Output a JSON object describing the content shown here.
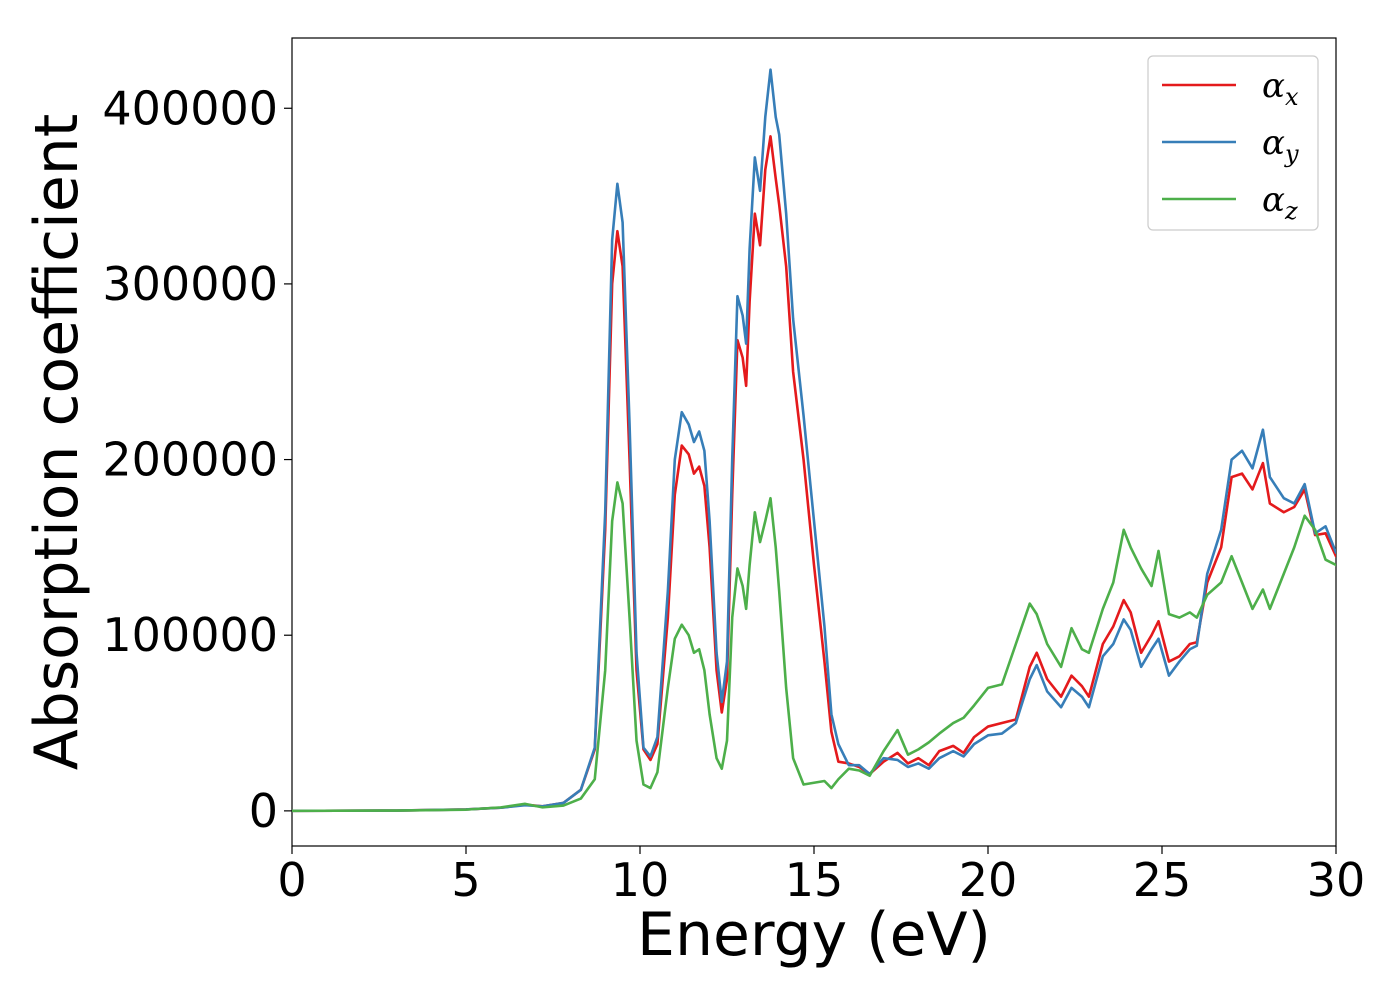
{
  "chart_data": {
    "type": "line",
    "title": "",
    "xlabel": "Energy (eV)",
    "ylabel": "Absorption coefficient",
    "xlim": [
      0,
      30
    ],
    "ylim": [
      -20000,
      440000
    ],
    "xticks": [
      0,
      5,
      10,
      15,
      20,
      25,
      30
    ],
    "yticks": [
      0,
      100000,
      200000,
      300000,
      400000
    ],
    "xtick_labels": [
      "0",
      "5",
      "10",
      "15",
      "20",
      "25",
      "30"
    ],
    "ytick_labels": [
      "0",
      "100000",
      "200000",
      "300000",
      "400000"
    ],
    "grid": false,
    "legend_position": "top-right",
    "series": [
      {
        "name": "αx",
        "name_base": "α",
        "name_sub": "x",
        "color": "#e41a1c",
        "points": [
          [
            0,
            0
          ],
          [
            3,
            200
          ],
          [
            5,
            800
          ],
          [
            6,
            1800
          ],
          [
            6.7,
            3500
          ],
          [
            7.2,
            2600
          ],
          [
            7.8,
            4500
          ],
          [
            8.3,
            12000
          ],
          [
            8.7,
            35000
          ],
          [
            9.0,
            160000
          ],
          [
            9.2,
            300000
          ],
          [
            9.35,
            330000
          ],
          [
            9.5,
            310000
          ],
          [
            9.7,
            200000
          ],
          [
            9.9,
            80000
          ],
          [
            10.1,
            35000
          ],
          [
            10.3,
            29000
          ],
          [
            10.5,
            38000
          ],
          [
            10.8,
            110000
          ],
          [
            11.0,
            180000
          ],
          [
            11.2,
            208000
          ],
          [
            11.4,
            203000
          ],
          [
            11.55,
            192000
          ],
          [
            11.7,
            196000
          ],
          [
            11.85,
            185000
          ],
          [
            12.0,
            150000
          ],
          [
            12.2,
            80000
          ],
          [
            12.35,
            56000
          ],
          [
            12.5,
            75000
          ],
          [
            12.65,
            180000
          ],
          [
            12.8,
            268000
          ],
          [
            12.95,
            258000
          ],
          [
            13.05,
            242000
          ],
          [
            13.15,
            290000
          ],
          [
            13.3,
            340000
          ],
          [
            13.45,
            322000
          ],
          [
            13.6,
            365000
          ],
          [
            13.75,
            384000
          ],
          [
            13.9,
            360000
          ],
          [
            14.0,
            345000
          ],
          [
            14.2,
            310000
          ],
          [
            14.4,
            250000
          ],
          [
            14.7,
            200000
          ],
          [
            15.0,
            140000
          ],
          [
            15.3,
            85000
          ],
          [
            15.5,
            45000
          ],
          [
            15.7,
            28000
          ],
          [
            16.0,
            27000
          ],
          [
            16.3,
            25000
          ],
          [
            16.6,
            21000
          ],
          [
            17.0,
            28000
          ],
          [
            17.4,
            33000
          ],
          [
            17.7,
            27000
          ],
          [
            18.0,
            30000
          ],
          [
            18.3,
            26000
          ],
          [
            18.6,
            34000
          ],
          [
            19.0,
            37000
          ],
          [
            19.3,
            33000
          ],
          [
            19.6,
            42000
          ],
          [
            20.0,
            48000
          ],
          [
            20.4,
            50000
          ],
          [
            20.8,
            52000
          ],
          [
            21.2,
            82000
          ],
          [
            21.4,
            90000
          ],
          [
            21.7,
            75000
          ],
          [
            22.1,
            65000
          ],
          [
            22.4,
            77000
          ],
          [
            22.7,
            71000
          ],
          [
            22.9,
            65000
          ],
          [
            23.3,
            95000
          ],
          [
            23.6,
            105000
          ],
          [
            23.9,
            120000
          ],
          [
            24.1,
            113000
          ],
          [
            24.4,
            90000
          ],
          [
            24.7,
            100000
          ],
          [
            24.9,
            108000
          ],
          [
            25.2,
            85000
          ],
          [
            25.5,
            88000
          ],
          [
            25.8,
            95000
          ],
          [
            26.0,
            96000
          ],
          [
            26.3,
            130000
          ],
          [
            26.7,
            150000
          ],
          [
            27.0,
            190000
          ],
          [
            27.3,
            192000
          ],
          [
            27.6,
            183000
          ],
          [
            27.9,
            198000
          ],
          [
            28.1,
            175000
          ],
          [
            28.5,
            170000
          ],
          [
            28.8,
            173000
          ],
          [
            29.1,
            183000
          ],
          [
            29.4,
            157000
          ],
          [
            29.7,
            158000
          ],
          [
            30.0,
            145000
          ]
        ]
      },
      {
        "name": "αy",
        "name_base": "α",
        "name_sub": "y",
        "color": "#377eb8",
        "points": [
          [
            0,
            0
          ],
          [
            3,
            200
          ],
          [
            5,
            800
          ],
          [
            6,
            1800
          ],
          [
            6.7,
            3200
          ],
          [
            7.2,
            2600
          ],
          [
            7.8,
            4500
          ],
          [
            8.3,
            12000
          ],
          [
            8.7,
            36000
          ],
          [
            9.0,
            170000
          ],
          [
            9.2,
            325000
          ],
          [
            9.35,
            357000
          ],
          [
            9.5,
            335000
          ],
          [
            9.7,
            220000
          ],
          [
            9.9,
            90000
          ],
          [
            10.1,
            36000
          ],
          [
            10.3,
            31000
          ],
          [
            10.5,
            42000
          ],
          [
            10.8,
            125000
          ],
          [
            11.0,
            200000
          ],
          [
            11.2,
            227000
          ],
          [
            11.4,
            220000
          ],
          [
            11.55,
            210000
          ],
          [
            11.7,
            216000
          ],
          [
            11.85,
            205000
          ],
          [
            12.0,
            165000
          ],
          [
            12.2,
            90000
          ],
          [
            12.35,
            62000
          ],
          [
            12.5,
            85000
          ],
          [
            12.65,
            200000
          ],
          [
            12.8,
            293000
          ],
          [
            12.95,
            282000
          ],
          [
            13.05,
            266000
          ],
          [
            13.15,
            320000
          ],
          [
            13.3,
            372000
          ],
          [
            13.45,
            353000
          ],
          [
            13.6,
            395000
          ],
          [
            13.75,
            422000
          ],
          [
            13.9,
            395000
          ],
          [
            14.0,
            385000
          ],
          [
            14.2,
            340000
          ],
          [
            14.4,
            280000
          ],
          [
            14.7,
            225000
          ],
          [
            15.0,
            165000
          ],
          [
            15.3,
            105000
          ],
          [
            15.5,
            55000
          ],
          [
            15.7,
            38000
          ],
          [
            16.0,
            26000
          ],
          [
            16.3,
            26000
          ],
          [
            16.6,
            21000
          ],
          [
            17.0,
            30000
          ],
          [
            17.4,
            29000
          ],
          [
            17.7,
            25000
          ],
          [
            18.0,
            27000
          ],
          [
            18.3,
            24000
          ],
          [
            18.6,
            30000
          ],
          [
            19.0,
            34000
          ],
          [
            19.3,
            31000
          ],
          [
            19.6,
            38000
          ],
          [
            20.0,
            43000
          ],
          [
            20.4,
            44000
          ],
          [
            20.8,
            50000
          ],
          [
            21.2,
            75000
          ],
          [
            21.4,
            83000
          ],
          [
            21.7,
            68000
          ],
          [
            22.1,
            59000
          ],
          [
            22.4,
            70000
          ],
          [
            22.7,
            65000
          ],
          [
            22.9,
            59000
          ],
          [
            23.3,
            88000
          ],
          [
            23.6,
            95000
          ],
          [
            23.9,
            109000
          ],
          [
            24.1,
            103000
          ],
          [
            24.4,
            82000
          ],
          [
            24.7,
            92000
          ],
          [
            24.9,
            98000
          ],
          [
            25.2,
            77000
          ],
          [
            25.5,
            85000
          ],
          [
            25.8,
            92000
          ],
          [
            26.0,
            94000
          ],
          [
            26.3,
            135000
          ],
          [
            26.7,
            160000
          ],
          [
            27.0,
            200000
          ],
          [
            27.3,
            205000
          ],
          [
            27.6,
            195000
          ],
          [
            27.9,
            217000
          ],
          [
            28.1,
            190000
          ],
          [
            28.5,
            178000
          ],
          [
            28.8,
            175000
          ],
          [
            29.1,
            186000
          ],
          [
            29.4,
            158000
          ],
          [
            29.7,
            162000
          ],
          [
            30.0,
            147000
          ]
        ]
      },
      {
        "name": "αz",
        "name_base": "α",
        "name_sub": "z",
        "color": "#4daf4a",
        "points": [
          [
            0,
            0
          ],
          [
            3,
            200
          ],
          [
            5,
            700
          ],
          [
            6,
            2000
          ],
          [
            6.7,
            4000
          ],
          [
            7.2,
            2000
          ],
          [
            7.8,
            3000
          ],
          [
            8.3,
            7000
          ],
          [
            8.7,
            18000
          ],
          [
            9.0,
            80000
          ],
          [
            9.2,
            165000
          ],
          [
            9.35,
            187000
          ],
          [
            9.5,
            175000
          ],
          [
            9.7,
            110000
          ],
          [
            9.9,
            40000
          ],
          [
            10.1,
            15000
          ],
          [
            10.3,
            13000
          ],
          [
            10.5,
            22000
          ],
          [
            10.8,
            70000
          ],
          [
            11.0,
            98000
          ],
          [
            11.2,
            106000
          ],
          [
            11.4,
            100000
          ],
          [
            11.55,
            90000
          ],
          [
            11.7,
            92000
          ],
          [
            11.85,
            80000
          ],
          [
            12.0,
            55000
          ],
          [
            12.2,
            30000
          ],
          [
            12.35,
            24000
          ],
          [
            12.5,
            40000
          ],
          [
            12.65,
            110000
          ],
          [
            12.8,
            138000
          ],
          [
            12.95,
            128000
          ],
          [
            13.05,
            115000
          ],
          [
            13.15,
            140000
          ],
          [
            13.3,
            170000
          ],
          [
            13.45,
            153000
          ],
          [
            13.6,
            165000
          ],
          [
            13.75,
            178000
          ],
          [
            13.9,
            150000
          ],
          [
            14.0,
            125000
          ],
          [
            14.2,
            70000
          ],
          [
            14.4,
            30000
          ],
          [
            14.7,
            15000
          ],
          [
            15.0,
            16000
          ],
          [
            15.3,
            17000
          ],
          [
            15.5,
            13000
          ],
          [
            15.7,
            18000
          ],
          [
            16.0,
            24000
          ],
          [
            16.3,
            23000
          ],
          [
            16.6,
            20000
          ],
          [
            17.0,
            34000
          ],
          [
            17.4,
            46000
          ],
          [
            17.7,
            32000
          ],
          [
            18.0,
            35000
          ],
          [
            18.3,
            39000
          ],
          [
            18.6,
            44000
          ],
          [
            19.0,
            50000
          ],
          [
            19.3,
            53000
          ],
          [
            19.6,
            60000
          ],
          [
            20.0,
            70000
          ],
          [
            20.4,
            72000
          ],
          [
            20.8,
            95000
          ],
          [
            21.2,
            118000
          ],
          [
            21.4,
            112000
          ],
          [
            21.7,
            95000
          ],
          [
            22.1,
            82000
          ],
          [
            22.4,
            104000
          ],
          [
            22.7,
            92000
          ],
          [
            22.9,
            90000
          ],
          [
            23.3,
            115000
          ],
          [
            23.6,
            130000
          ],
          [
            23.9,
            160000
          ],
          [
            24.1,
            150000
          ],
          [
            24.4,
            138000
          ],
          [
            24.7,
            128000
          ],
          [
            24.9,
            148000
          ],
          [
            25.2,
            112000
          ],
          [
            25.5,
            110000
          ],
          [
            25.8,
            113000
          ],
          [
            26.0,
            110000
          ],
          [
            26.3,
            123000
          ],
          [
            26.7,
            130000
          ],
          [
            27.0,
            145000
          ],
          [
            27.3,
            130000
          ],
          [
            27.6,
            115000
          ],
          [
            27.9,
            126000
          ],
          [
            28.1,
            115000
          ],
          [
            28.5,
            135000
          ],
          [
            28.8,
            150000
          ],
          [
            29.1,
            168000
          ],
          [
            29.4,
            160000
          ],
          [
            29.7,
            143000
          ],
          [
            30.0,
            140000
          ]
        ]
      }
    ]
  }
}
